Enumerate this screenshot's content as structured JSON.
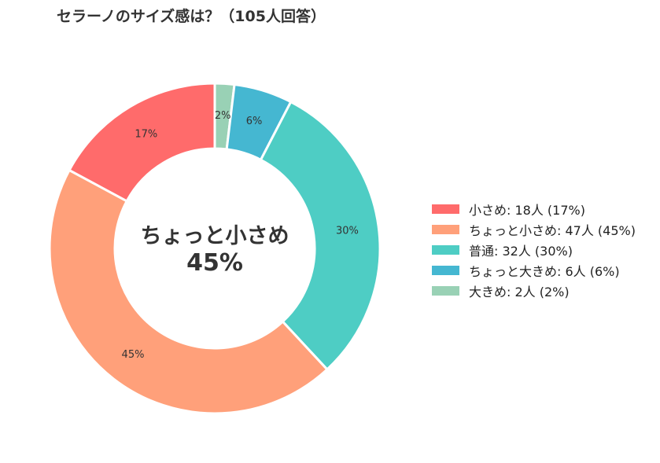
{
  "chart_data": {
    "type": "pie",
    "donut": true,
    "title": "セラーノのサイズ感は？（105人回答）",
    "center": {
      "label": "ちょっと小さめ",
      "value": "45%"
    },
    "start_angle_deg": 90,
    "direction": "clockwise",
    "slices": [
      {
        "category": "大きめ",
        "count": 2,
        "percent_label": "2%",
        "legend": "大きめ:  2人 (2%)",
        "color": "#99d1b5"
      },
      {
        "category": "ちょっと大きめ",
        "count": 6,
        "percent_label": "6%",
        "legend": "ちょっと大きめ:  6人 (6%)",
        "color": "#45b7d1"
      },
      {
        "category": "普通",
        "count": 32,
        "percent_label": "30%",
        "legend": "普通:  32人 (30%)",
        "color": "#4ecdc4"
      },
      {
        "category": "ちょっと小さめ",
        "count": 47,
        "percent_label": "45%",
        "legend": "ちょっと小さめ:  47人 (45%)",
        "color": "#ffa07a"
      },
      {
        "category": "小さめ",
        "count": 18,
        "percent_label": "17%",
        "legend": "小さめ:  18人 (17%)",
        "color": "#ff6b6b"
      }
    ],
    "legend_order": [
      4,
      3,
      2,
      1,
      0
    ],
    "legend_position": "right"
  }
}
